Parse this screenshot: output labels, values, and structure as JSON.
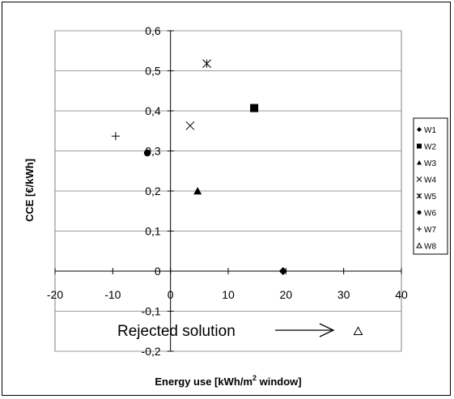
{
  "chart_data": {
    "type": "scatter",
    "title": "",
    "xlabel": "Energy use [kWh/m",
    "xlabel_sup": "2",
    "xlabel_tail": " window]",
    "ylabel": "CCE [€/kWh]",
    "xlim": [
      -20,
      40
    ],
    "ylim": [
      -0.2,
      0.6
    ],
    "xticks": [
      -20,
      -10,
      0,
      10,
      20,
      30,
      40
    ],
    "yticks": [
      -0.2,
      -0.1,
      0,
      0.1,
      0.2,
      0.3,
      0.4,
      0.5,
      0.6
    ],
    "xtick_labels": [
      "-20",
      "-10",
      "0",
      "10",
      "20",
      "30",
      "40"
    ],
    "ytick_labels": [
      "-0,2",
      "-0,1",
      "0",
      "0,1",
      "0,2",
      "0,3",
      "0,4",
      "0,5",
      "0,6"
    ],
    "grid": "horizontal",
    "legend_position": "right",
    "series": [
      {
        "name": "W1",
        "marker": "diamond",
        "x": [
          19.5
        ],
        "y": [
          0.0
        ]
      },
      {
        "name": "W2",
        "marker": "square",
        "x": [
          14.5
        ],
        "y": [
          0.407
        ]
      },
      {
        "name": "W3",
        "marker": "triangle",
        "x": [
          4.7
        ],
        "y": [
          0.2
        ]
      },
      {
        "name": "W4",
        "marker": "x",
        "x": [
          3.4
        ],
        "y": [
          0.363
        ]
      },
      {
        "name": "W5",
        "marker": "star",
        "x": [
          6.3
        ],
        "y": [
          0.518
        ]
      },
      {
        "name": "W6",
        "marker": "circle",
        "x": [
          -4.0
        ],
        "y": [
          0.295
        ]
      },
      {
        "name": "W7",
        "marker": "plus",
        "x": [
          -9.5
        ],
        "y": [
          0.337
        ]
      },
      {
        "name": "W8",
        "marker": "triangle-open",
        "x": [
          32.5
        ],
        "y": [
          -0.15
        ]
      }
    ],
    "annotation": {
      "text": "Rejected solution",
      "arrow_to": "W8"
    }
  }
}
